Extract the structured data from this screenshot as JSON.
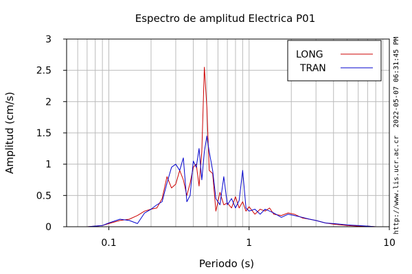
{
  "chart_data": {
    "type": "line",
    "title": "Espectro de amplitud Electrica P01",
    "xlabel": "Periodo (s)",
    "ylabel": "Amplitud (cm/s)",
    "xscale": "log",
    "xlim": [
      0.05,
      10
    ],
    "ylim": [
      0,
      3
    ],
    "xticks": [
      0.1,
      1,
      10
    ],
    "xtick_labels": [
      "0.1",
      "1",
      "10"
    ],
    "yticks": [
      0,
      0.5,
      1,
      1.5,
      2,
      2.5,
      3
    ],
    "ytick_labels": [
      "0",
      "0.5",
      "1",
      "1.5",
      "2",
      "2.5",
      "3"
    ],
    "grid": true,
    "legend_position": "top-right",
    "side_text_top": "2022-05-07 06:31:45 PM",
    "side_text_bottom": "http://www.lis.ucr.ac.cr",
    "series": [
      {
        "name": "LONG",
        "color": "#cc0000",
        "x": [
          0.05,
          0.07,
          0.09,
          0.1,
          0.12,
          0.14,
          0.16,
          0.18,
          0.2,
          0.22,
          0.24,
          0.26,
          0.28,
          0.3,
          0.32,
          0.34,
          0.36,
          0.38,
          0.4,
          0.42,
          0.44,
          0.46,
          0.48,
          0.5,
          0.52,
          0.55,
          0.58,
          0.62,
          0.66,
          0.7,
          0.75,
          0.8,
          0.85,
          0.9,
          0.95,
          1.0,
          1.1,
          1.2,
          1.3,
          1.4,
          1.5,
          1.7,
          1.9,
          2.1,
          2.4,
          2.7,
          3.0,
          3.5,
          4.0,
          5.0,
          6.0,
          7.0,
          8.0,
          10.0
        ],
        "y": [
          0.0,
          0.0,
          0.02,
          0.05,
          0.1,
          0.12,
          0.18,
          0.25,
          0.28,
          0.3,
          0.45,
          0.8,
          0.62,
          0.68,
          0.9,
          0.75,
          0.5,
          0.7,
          0.95,
          1.0,
          0.65,
          1.2,
          2.55,
          1.9,
          0.9,
          0.85,
          0.25,
          0.55,
          0.35,
          0.38,
          0.3,
          0.48,
          0.3,
          0.4,
          0.25,
          0.32,
          0.2,
          0.28,
          0.25,
          0.3,
          0.2,
          0.18,
          0.22,
          0.2,
          0.14,
          0.12,
          0.1,
          0.06,
          0.04,
          0.02,
          0.01,
          0.01,
          0.0,
          0.0
        ]
      },
      {
        "name": "TRAN",
        "color": "#0000cc",
        "x": [
          0.05,
          0.07,
          0.09,
          0.1,
          0.12,
          0.14,
          0.16,
          0.18,
          0.2,
          0.22,
          0.24,
          0.26,
          0.28,
          0.3,
          0.32,
          0.34,
          0.36,
          0.38,
          0.4,
          0.42,
          0.44,
          0.46,
          0.48,
          0.5,
          0.52,
          0.55,
          0.58,
          0.62,
          0.66,
          0.7,
          0.75,
          0.8,
          0.85,
          0.9,
          0.95,
          1.0,
          1.1,
          1.2,
          1.3,
          1.4,
          1.5,
          1.7,
          1.9,
          2.1,
          2.4,
          2.7,
          3.0,
          3.5,
          4.0,
          5.0,
          6.0,
          7.0,
          8.0,
          10.0
        ],
        "y": [
          0.0,
          0.0,
          0.02,
          0.06,
          0.12,
          0.1,
          0.05,
          0.22,
          0.28,
          0.35,
          0.4,
          0.7,
          0.95,
          1.0,
          0.9,
          1.1,
          0.4,
          0.5,
          1.05,
          0.95,
          1.25,
          0.75,
          1.2,
          1.45,
          1.2,
          0.9,
          0.45,
          0.35,
          0.8,
          0.35,
          0.45,
          0.3,
          0.42,
          0.9,
          0.3,
          0.25,
          0.28,
          0.2,
          0.28,
          0.25,
          0.22,
          0.15,
          0.2,
          0.18,
          0.15,
          0.12,
          0.1,
          0.06,
          0.05,
          0.03,
          0.02,
          0.01,
          0.0,
          0.0
        ]
      }
    ]
  }
}
